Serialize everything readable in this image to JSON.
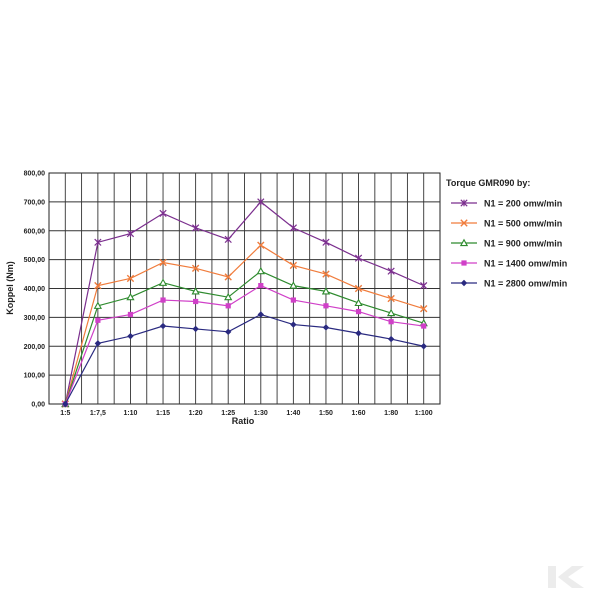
{
  "chart_data": {
    "type": "line",
    "title": "",
    "xlabel": "Ratio",
    "ylabel": "Koppel (Nm)",
    "categories": [
      "1:5",
      "1:7,5",
      "1:10",
      "1:15",
      "1:20",
      "1:25",
      "1:30",
      "1:40",
      "1:50",
      "1:60",
      "1:80",
      "1:100"
    ],
    "ylim": [
      0,
      800
    ],
    "yticks": [
      "0,00",
      "100,00",
      "200,00",
      "300,00",
      "400,00",
      "500,00",
      "600,00",
      "700,00",
      "800,00"
    ],
    "grid": true,
    "legend_position": "right",
    "legend_title": "Torque GMR090 by:",
    "series": [
      {
        "name": "N1 = 200 omw/min",
        "color": "#7b2f8e",
        "marker": "asterisk",
        "values": [
          0,
          560,
          590,
          660,
          610,
          570,
          700,
          610,
          560,
          505,
          460,
          410
        ]
      },
      {
        "name": "N1 = 500 omw/min",
        "color": "#f07c3c",
        "marker": "x",
        "values": [
          0,
          410,
          435,
          490,
          470,
          440,
          550,
          480,
          450,
          400,
          365,
          330
        ]
      },
      {
        "name": "N1 = 900 omw/min",
        "color": "#2e8b2e",
        "marker": "triangle",
        "values": [
          0,
          340,
          370,
          420,
          390,
          370,
          460,
          410,
          390,
          350,
          315,
          280
        ]
      },
      {
        "name": "N1 = 1400 omw/min",
        "color": "#d040c8",
        "marker": "square",
        "values": [
          0,
          290,
          310,
          360,
          355,
          340,
          410,
          360,
          340,
          320,
          285,
          270
        ]
      },
      {
        "name": "N1 = 2800 omw/min",
        "color": "#2a2a80",
        "marker": "diamond",
        "values": [
          0,
          210,
          235,
          270,
          260,
          250,
          310,
          275,
          265,
          245,
          225,
          200
        ]
      }
    ]
  }
}
